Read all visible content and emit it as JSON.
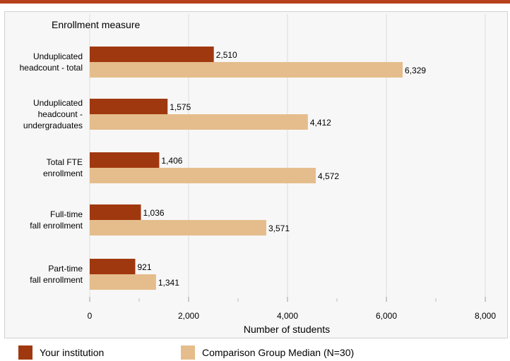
{
  "chart_data": {
    "type": "bar",
    "orientation": "horizontal",
    "title": "Enrollment measure",
    "xlabel": "Number of students",
    "xlim": [
      0,
      8000
    ],
    "xticks": [
      0,
      2000,
      4000,
      6000,
      8000
    ],
    "xtick_labels": [
      "0",
      "2,000",
      "4,000",
      "6,000",
      "8,000"
    ],
    "grid": "vertical",
    "legend_position": "bottom",
    "categories": [
      [
        "Unduplicated",
        "headcount - total"
      ],
      [
        "Unduplicated",
        "headcount -",
        "undergraduates"
      ],
      [
        "Total FTE",
        "enrollment"
      ],
      [
        "Full-time",
        "fall enrollment"
      ],
      [
        "Part-time",
        "fall enrollment"
      ]
    ],
    "series": [
      {
        "name": "Your institution",
        "color": "#a0380f",
        "values": [
          2510,
          1575,
          1406,
          1036,
          921
        ],
        "value_labels": [
          "2,510",
          "1,575",
          "1,406",
          "1,036",
          "921"
        ]
      },
      {
        "name": "Comparison Group Median (N=30)",
        "color": "#e5bd8c",
        "values": [
          6329,
          4412,
          4572,
          3571,
          1341
        ],
        "value_labels": [
          "6,329",
          "4,412",
          "4,572",
          "3,571",
          "1,341"
        ]
      }
    ]
  }
}
